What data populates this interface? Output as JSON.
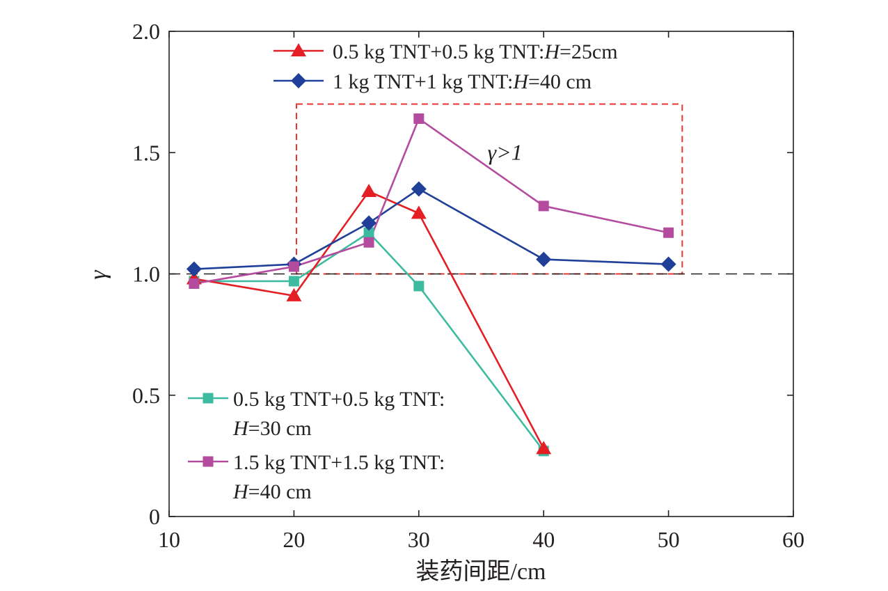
{
  "chart_data": {
    "type": "line",
    "xlabel": "装药间距/cm",
    "ylabel": "γ",
    "xlim": [
      10,
      60
    ],
    "ylim": [
      0,
      2.0
    ],
    "xticks": [
      10,
      20,
      30,
      40,
      50,
      60
    ],
    "xtick_labels": [
      "10",
      "20",
      "30",
      "40",
      "50",
      "60"
    ],
    "yticks": [
      0,
      0.5,
      1.0,
      1.5,
      2.0
    ],
    "ytick_labels": [
      "0",
      "0.5",
      "1.0",
      "1.5",
      "2.0"
    ],
    "grid": false,
    "reference_line": {
      "y": 1.0,
      "style": "dashed",
      "color": "#231f20"
    },
    "highlight_box": {
      "x": [
        20.2,
        51.1
      ],
      "y": [
        1.0,
        1.7
      ],
      "color": "#e8352d",
      "style": "dashed"
    },
    "annotation": {
      "text": "γ>1",
      "x": 35.5,
      "y": 1.5
    },
    "series": [
      {
        "name": "0.5 kg TNT+0.5 kg TNT:H=25cm",
        "legend_lines": [
          [
            "0.5 kg TNT+0.5 kg TNT:",
            "H",
            "=25cm"
          ]
        ],
        "legend_group": "top",
        "marker": "triangle",
        "color": "#e31e24",
        "x": [
          12,
          20,
          26,
          30,
          40
        ],
        "y": [
          0.98,
          0.91,
          1.34,
          1.25,
          0.28
        ]
      },
      {
        "name": "1 kg TNT+1 kg TNT:H=40 cm",
        "legend_lines": [
          [
            "1 kg TNT+1 kg TNT:",
            "H",
            "=40 cm"
          ]
        ],
        "legend_group": "top",
        "marker": "diamond",
        "color": "#1f3f99",
        "x": [
          12,
          20,
          26,
          30,
          40,
          50
        ],
        "y": [
          1.02,
          1.04,
          1.21,
          1.35,
          1.06,
          1.04
        ]
      },
      {
        "name": "0.5 kg TNT+0.5 kg TNT:H=30 cm",
        "legend_lines": [
          [
            "0.5 kg TNT+0.5 kg TNT:",
            "",
            ""
          ],
          [
            "",
            "H",
            "=30 cm"
          ]
        ],
        "legend_group": "bottom",
        "marker": "square",
        "color": "#3dbba0",
        "x": [
          12,
          20,
          26,
          30,
          40
        ],
        "y": [
          0.97,
          0.97,
          1.17,
          0.95,
          0.27
        ]
      },
      {
        "name": "1.5 kg TNT+1.5 kg TNT:H=40 cm",
        "legend_lines": [
          [
            "1.5 kg TNT+1.5 kg TNT:",
            "",
            ""
          ],
          [
            "",
            "H",
            "=40 cm"
          ]
        ],
        "legend_group": "bottom",
        "marker": "square",
        "color": "#b44b9e",
        "x": [
          12,
          20,
          26,
          30,
          40,
          50
        ],
        "y": [
          0.96,
          1.03,
          1.13,
          1.64,
          1.28,
          1.17
        ]
      }
    ]
  }
}
